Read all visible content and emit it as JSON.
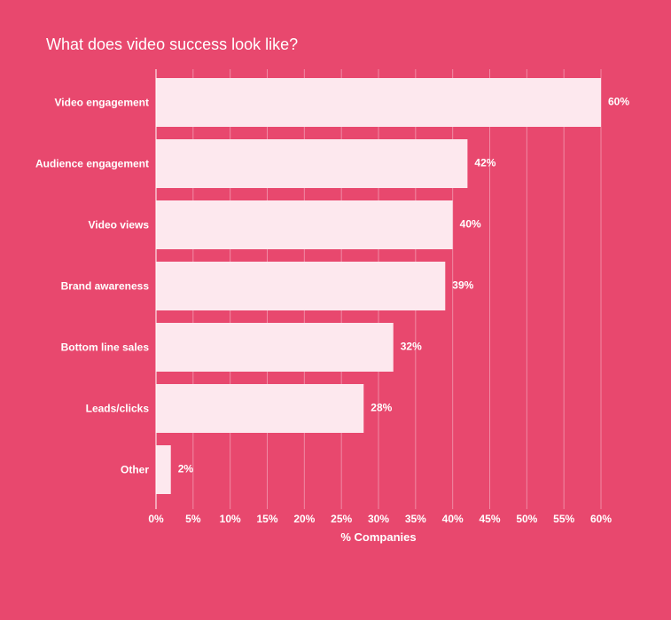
{
  "colors": {
    "background": "#e8486e",
    "bar": "#fde8ee",
    "text": "#ffffff",
    "grid": "#f08aa4"
  },
  "chart_data": {
    "type": "bar",
    "orientation": "horizontal",
    "title": "What does video success look like?",
    "xlabel": "% Companies",
    "ylabel": "",
    "categories": [
      "Video engagement",
      "Audience engagement",
      "Video views",
      "Brand awareness",
      "Bottom line sales",
      "Leads/clicks",
      "Other"
    ],
    "values": [
      60,
      42,
      40,
      39,
      32,
      28,
      2
    ],
    "value_labels": [
      "60%",
      "42%",
      "40%",
      "39%",
      "32%",
      "28%",
      "2%"
    ],
    "xlim": [
      0,
      60
    ],
    "x_ticks": [
      0,
      5,
      10,
      15,
      20,
      25,
      30,
      35,
      40,
      45,
      50,
      55,
      60
    ],
    "x_tick_labels": [
      "0%",
      "5%",
      "10%",
      "15%",
      "20%",
      "25%",
      "30%",
      "35%",
      "40%",
      "45%",
      "50%",
      "55%",
      "60%"
    ],
    "grid": true,
    "legend": "none"
  }
}
